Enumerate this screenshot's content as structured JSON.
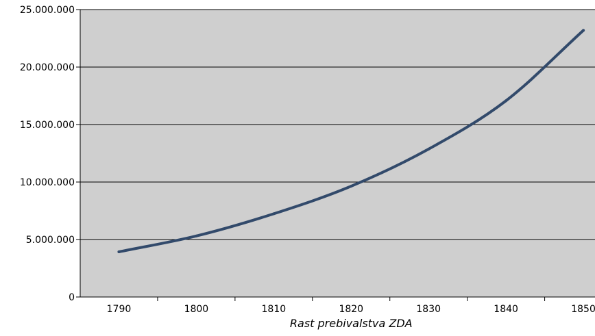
{
  "chart_data": {
    "type": "line",
    "title": "",
    "xlabel": "Rast prebivalstva ZDA",
    "ylabel": "",
    "xlim": [
      1785,
      1851.5
    ],
    "ylim": [
      0,
      25000000
    ],
    "grid": true,
    "legend": "none",
    "x_ticks": [
      1790,
      1800,
      1810,
      1820,
      1830,
      1840,
      1850
    ],
    "x_tick_labels": [
      "1790",
      "1800",
      "1810",
      "1820",
      "1830",
      "1840",
      "1850"
    ],
    "y_ticks": [
      0,
      5000000,
      10000000,
      15000000,
      20000000,
      25000000
    ],
    "y_tick_labels": [
      "0",
      "5.000.000",
      "10.000.000",
      "15.000.000",
      "20.000.000",
      "25.000.000"
    ],
    "series": [
      {
        "x": [
          1790,
          1800,
          1810,
          1820,
          1830,
          1840,
          1850
        ],
        "y": [
          3929214,
          5308483,
          7239881,
          9638453,
          12866020,
          17069453,
          23191876
        ],
        "color": "#324a6b"
      }
    ],
    "colors": {
      "plot_background": "#cfcfcf",
      "gridline": "#000000",
      "line": "#324a6b"
    }
  }
}
